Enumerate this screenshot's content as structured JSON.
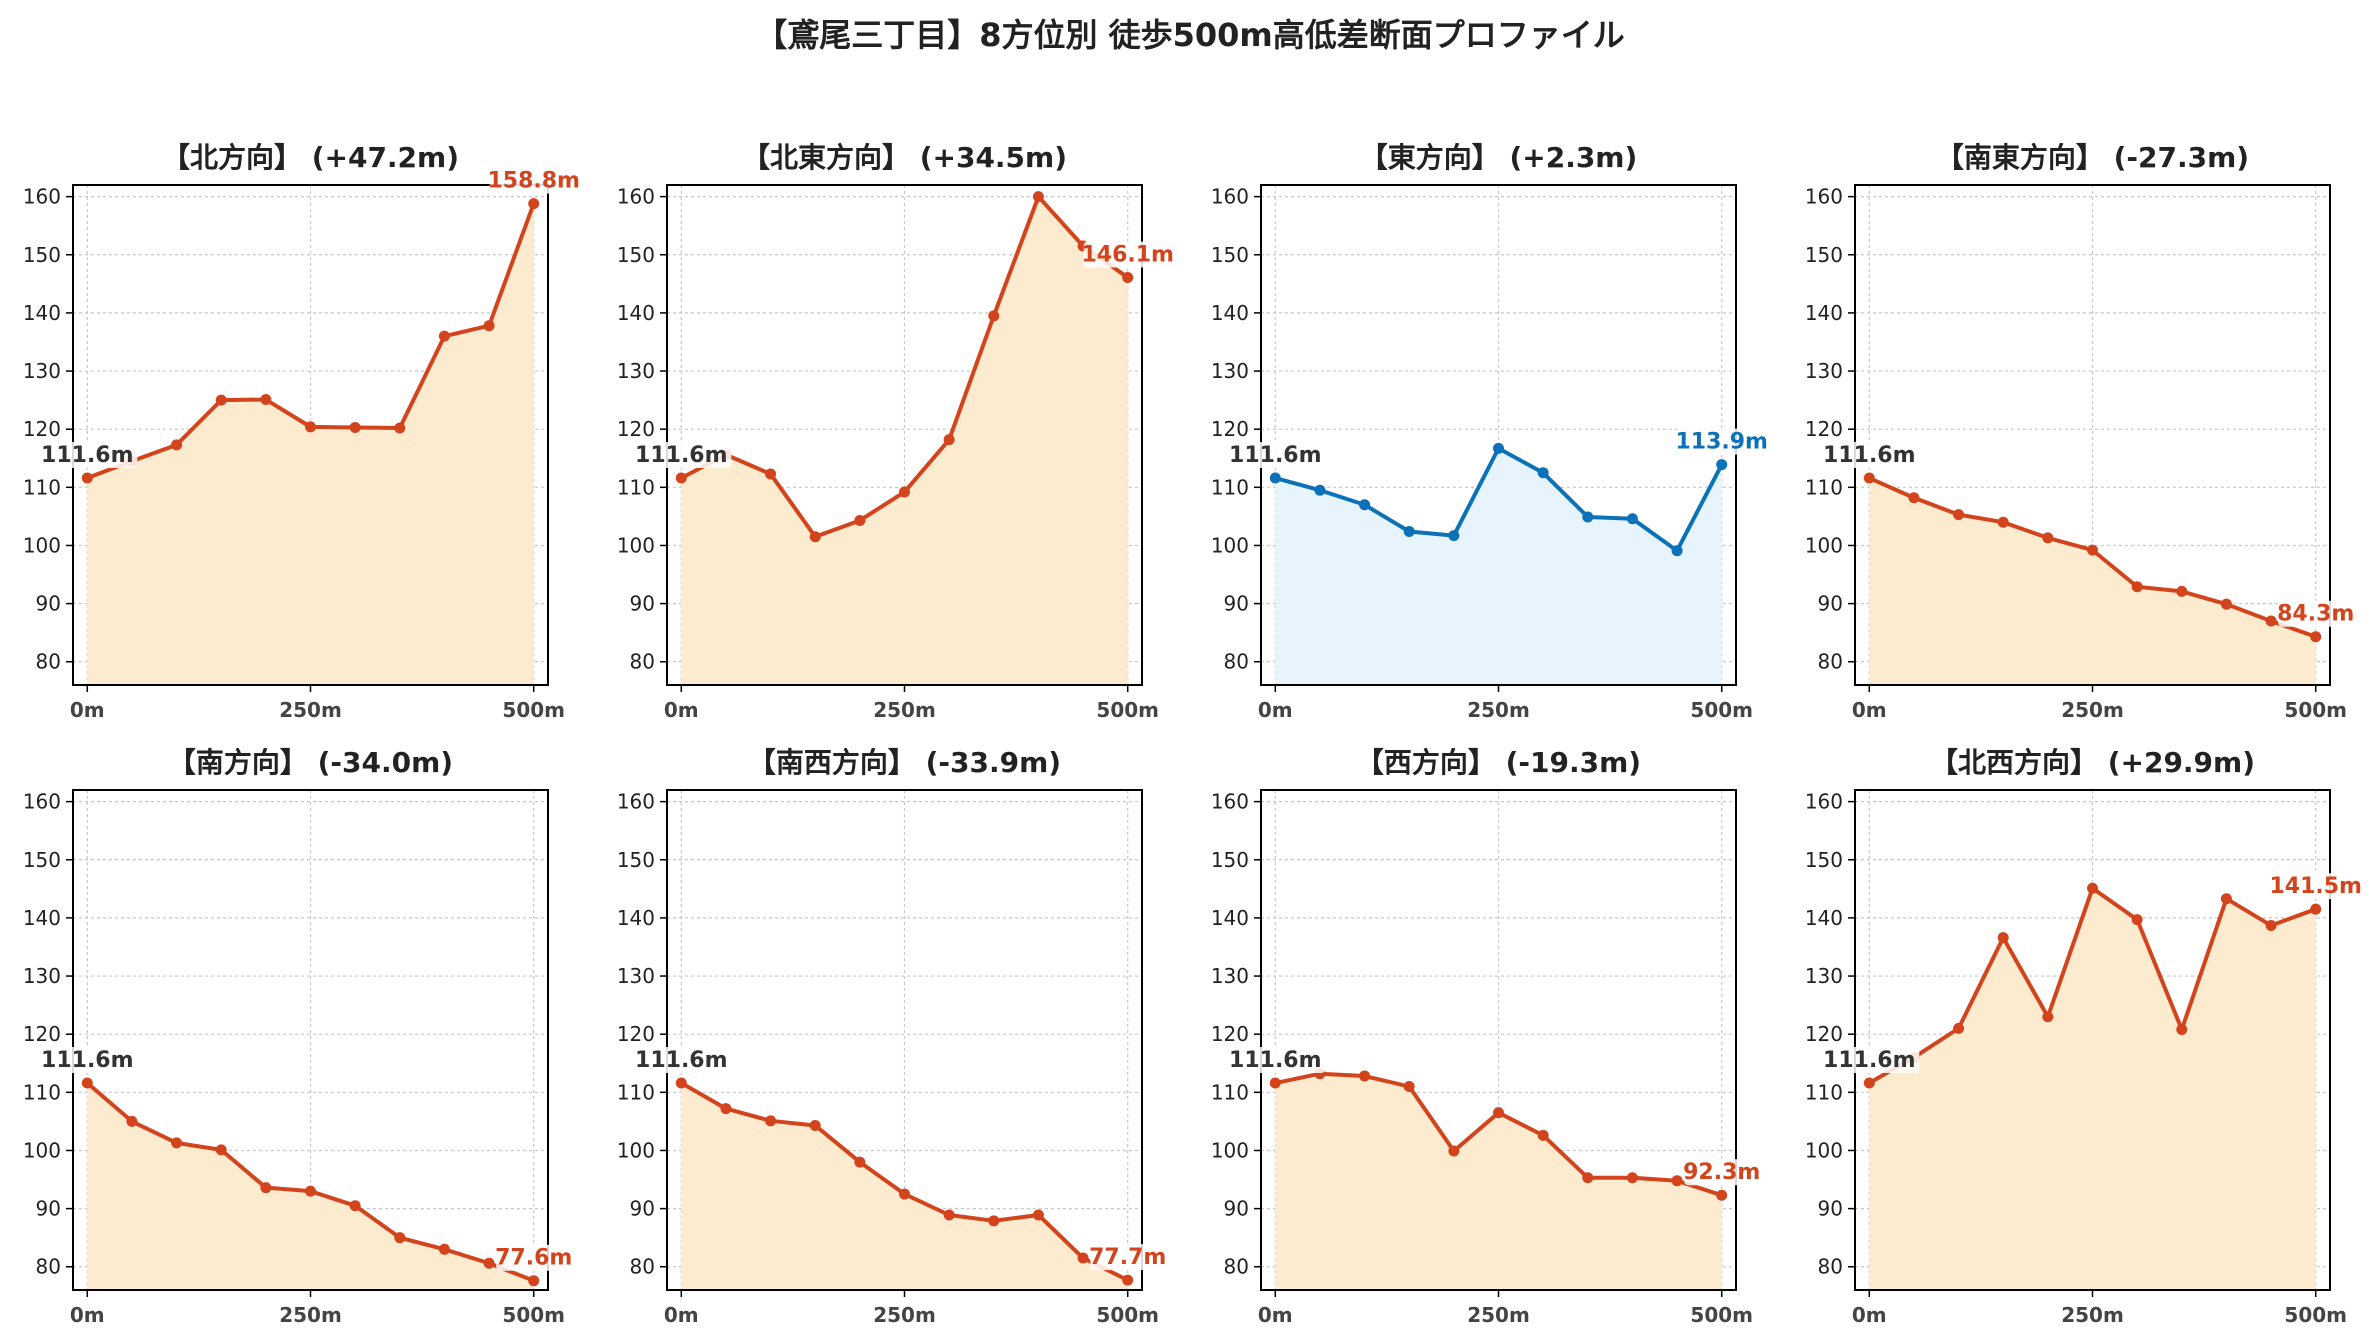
{
  "title": "【鳶尾三丁目】8方位別 徒歩500m高低差断面プロファイル",
  "colors": {
    "warm_line": "#d4441c",
    "warm_fill": "#fdebd0",
    "cool_line": "#0b72b9",
    "cool_fill": "#e8f4fb",
    "grid": "#c8c8c8",
    "start_label": "#333333"
  },
  "chart_data": [
    {
      "type": "area",
      "title": "【北方向】 (+47.2m)",
      "x": [
        0,
        50,
        100,
        150,
        200,
        250,
        300,
        350,
        400,
        450,
        500
      ],
      "values": [
        111.6,
        114.5,
        117.3,
        125.0,
        125.1,
        120.4,
        120.3,
        120.2,
        136.0,
        137.8,
        158.8
      ],
      "xticks": [
        "0m",
        "250m",
        "500m"
      ],
      "ylim": [
        76,
        162
      ],
      "yticks": [
        80,
        90,
        100,
        110,
        120,
        130,
        140,
        150,
        160
      ],
      "start_label": "111.6m",
      "end_label": "158.8m",
      "scheme": "warm",
      "grid": true
    },
    {
      "type": "area",
      "title": "【北東方向】 (+34.5m)",
      "x": [
        0,
        50,
        100,
        150,
        200,
        250,
        300,
        350,
        400,
        450,
        500
      ],
      "values": [
        111.6,
        115.6,
        112.3,
        101.5,
        104.3,
        109.2,
        118.2,
        139.5,
        160.0,
        151.5,
        146.1
      ],
      "xticks": [
        "0m",
        "250m",
        "500m"
      ],
      "ylim": [
        76,
        162
      ],
      "yticks": [
        80,
        90,
        100,
        110,
        120,
        130,
        140,
        150,
        160
      ],
      "start_label": "111.6m",
      "end_label": "146.1m",
      "scheme": "warm",
      "grid": true
    },
    {
      "type": "area",
      "title": "【東方向】 (+2.3m)",
      "x": [
        0,
        50,
        100,
        150,
        200,
        250,
        300,
        350,
        400,
        450,
        500
      ],
      "values": [
        111.6,
        109.5,
        107.0,
        102.4,
        101.7,
        116.7,
        112.5,
        104.9,
        104.6,
        99.1,
        113.9
      ],
      "xticks": [
        "0m",
        "250m",
        "500m"
      ],
      "ylim": [
        76,
        162
      ],
      "yticks": [
        80,
        90,
        100,
        110,
        120,
        130,
        140,
        150,
        160
      ],
      "start_label": "111.6m",
      "end_label": "113.9m",
      "scheme": "cool",
      "grid": true
    },
    {
      "type": "area",
      "title": "【南東方向】 (-27.3m)",
      "x": [
        0,
        50,
        100,
        150,
        200,
        250,
        300,
        350,
        400,
        450,
        500
      ],
      "values": [
        111.6,
        108.2,
        105.3,
        104.0,
        101.3,
        99.2,
        92.9,
        92.1,
        89.9,
        87.0,
        84.3
      ],
      "xticks": [
        "0m",
        "250m",
        "500m"
      ],
      "ylim": [
        76,
        162
      ],
      "yticks": [
        80,
        90,
        100,
        110,
        120,
        130,
        140,
        150,
        160
      ],
      "start_label": "111.6m",
      "end_label": "84.3m",
      "scheme": "warm",
      "grid": true
    },
    {
      "type": "area",
      "title": "【南方向】 (-34.0m)",
      "x": [
        0,
        50,
        100,
        150,
        200,
        250,
        300,
        350,
        400,
        450,
        500
      ],
      "values": [
        111.6,
        105.0,
        101.3,
        100.1,
        93.6,
        93.0,
        90.5,
        85.0,
        83.0,
        80.6,
        77.6
      ],
      "xticks": [
        "0m",
        "250m",
        "500m"
      ],
      "ylim": [
        76,
        162
      ],
      "yticks": [
        80,
        90,
        100,
        110,
        120,
        130,
        140,
        150,
        160
      ],
      "start_label": "111.6m",
      "end_label": "77.6m",
      "scheme": "warm",
      "grid": true
    },
    {
      "type": "area",
      "title": "【南西方向】 (-33.9m)",
      "x": [
        0,
        50,
        100,
        150,
        200,
        250,
        300,
        350,
        400,
        450,
        500
      ],
      "values": [
        111.6,
        107.2,
        105.1,
        104.3,
        98.0,
        92.5,
        88.9,
        87.9,
        88.9,
        81.5,
        77.7
      ],
      "xticks": [
        "0m",
        "250m",
        "500m"
      ],
      "ylim": [
        76,
        162
      ],
      "yticks": [
        80,
        90,
        100,
        110,
        120,
        130,
        140,
        150,
        160
      ],
      "start_label": "111.6m",
      "end_label": "77.7m",
      "scheme": "warm",
      "grid": true
    },
    {
      "type": "area",
      "title": "【西方向】 (-19.3m)",
      "x": [
        0,
        50,
        100,
        150,
        200,
        250,
        300,
        350,
        400,
        450,
        500
      ],
      "values": [
        111.6,
        113.2,
        112.8,
        111.0,
        99.9,
        106.5,
        102.6,
        95.3,
        95.3,
        94.8,
        92.3
      ],
      "xticks": [
        "0m",
        "250m",
        "500m"
      ],
      "ylim": [
        76,
        162
      ],
      "yticks": [
        80,
        90,
        100,
        110,
        120,
        130,
        140,
        150,
        160
      ],
      "start_label": "111.6m",
      "end_label": "92.3m",
      "scheme": "warm",
      "grid": true
    },
    {
      "type": "area",
      "title": "【北西方向】 (+29.9m)",
      "x": [
        0,
        50,
        100,
        150,
        200,
        250,
        300,
        350,
        400,
        450,
        500
      ],
      "values": [
        111.6,
        116.0,
        121.0,
        136.6,
        123.0,
        145.1,
        139.7,
        120.8,
        143.3,
        138.7,
        141.5
      ],
      "xticks": [
        "0m",
        "250m",
        "500m"
      ],
      "ylim": [
        76,
        162
      ],
      "yticks": [
        80,
        90,
        100,
        110,
        120,
        130,
        140,
        150,
        160
      ],
      "start_label": "111.6m",
      "end_label": "141.5m",
      "scheme": "warm",
      "grid": true
    }
  ]
}
